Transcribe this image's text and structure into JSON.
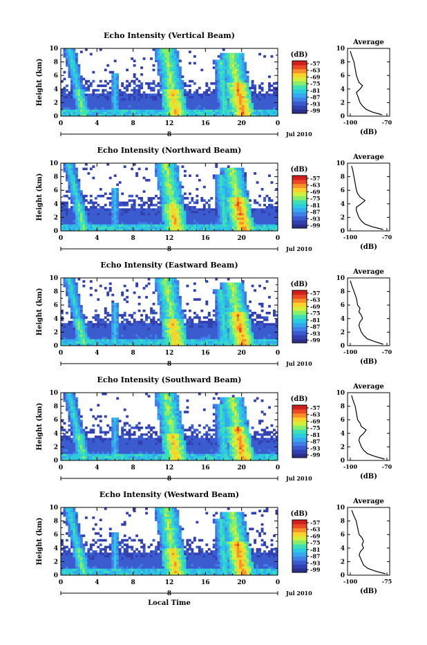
{
  "chart_data": [
    {
      "type": "heatmap",
      "title": "Echo Intensity (Vertical Beam)",
      "ylabel": "Height (km)",
      "x_ticks": [
        "0",
        "4",
        "8",
        "12",
        "16",
        "20",
        "0"
      ],
      "y_ticks": [
        "0",
        "2",
        "4",
        "6",
        "8",
        "10"
      ],
      "xlim": [
        0,
        24
      ],
      "ylim": [
        0,
        10
      ],
      "day_label": "8",
      "date_label": "Jul 2010",
      "colorbar": {
        "unit": "(dB)",
        "ticks": [
          "-57",
          "-63",
          "-69",
          "-75",
          "-81",
          "-87",
          "-93",
          "-99"
        ]
      },
      "profile": {
        "title": "Average",
        "xlabel": "(dB)",
        "x_ticks": [
          "-100",
          "-70"
        ],
        "xlim": [
          -100,
          -70
        ],
        "y_ticks": [
          "0",
          "2",
          "4",
          "6",
          "8",
          "10"
        ],
        "points": [
          [
            -74,
            0.2
          ],
          [
            -82,
            0.6
          ],
          [
            -87,
            1.0
          ],
          [
            -90,
            1.5
          ],
          [
            -92,
            2.0
          ],
          [
            -93,
            2.5
          ],
          [
            -94,
            3.0
          ],
          [
            -95,
            3.5
          ],
          [
            -92,
            4.0
          ],
          [
            -90,
            4.5
          ],
          [
            -93,
            5.0
          ],
          [
            -94,
            5.5
          ],
          [
            -95,
            6.0
          ],
          [
            -96,
            7.0
          ],
          [
            -97,
            8.0
          ],
          [
            -99,
            9.0
          ],
          [
            -100,
            9.6
          ]
        ]
      }
    },
    {
      "type": "heatmap",
      "title": "Echo Intensity (Northward Beam)",
      "ylabel": "Height (km)",
      "x_ticks": [
        "0",
        "4",
        "8",
        "12",
        "16",
        "20",
        "0"
      ],
      "y_ticks": [
        "0",
        "2",
        "4",
        "6",
        "8",
        "10"
      ],
      "xlim": [
        0,
        24
      ],
      "ylim": [
        0,
        10
      ],
      "day_label": "8",
      "date_label": "Jul 2010",
      "colorbar": {
        "unit": "(dB)",
        "ticks": [
          "-57",
          "-63",
          "-69",
          "-75",
          "-81",
          "-87",
          "-93",
          "-99"
        ]
      },
      "profile": {
        "title": "Average",
        "xlabel": "(dB)",
        "x_ticks": [
          "-100",
          "-70"
        ],
        "xlim": [
          -100,
          -70
        ],
        "y_ticks": [
          "0",
          "2",
          "4",
          "6",
          "8",
          "10"
        ],
        "points": [
          [
            -73,
            0.2
          ],
          [
            -82,
            0.6
          ],
          [
            -88,
            1.0
          ],
          [
            -91,
            1.5
          ],
          [
            -93,
            2.0
          ],
          [
            -94,
            2.5
          ],
          [
            -95,
            3.0
          ],
          [
            -95,
            3.5
          ],
          [
            -91,
            4.0
          ],
          [
            -88,
            4.5
          ],
          [
            -92,
            5.0
          ],
          [
            -94,
            5.5
          ],
          [
            -95,
            6.0
          ],
          [
            -96,
            7.0
          ],
          [
            -97,
            8.0
          ],
          [
            -98,
            9.0
          ],
          [
            -99,
            9.6
          ]
        ]
      }
    },
    {
      "type": "heatmap",
      "title": "Echo Intensity (Eastward Beam)",
      "ylabel": "Height (km)",
      "x_ticks": [
        "0",
        "4",
        "8",
        "12",
        "16",
        "20",
        "0"
      ],
      "y_ticks": [
        "0",
        "2",
        "4",
        "6",
        "8",
        "10"
      ],
      "xlim": [
        0,
        24
      ],
      "ylim": [
        0,
        10
      ],
      "day_label": "8",
      "date_label": "Jul 2010",
      "colorbar": {
        "unit": "(dB)",
        "ticks": [
          "-57",
          "-63",
          "-69",
          "-75",
          "-81",
          "-87",
          "-93",
          "-99"
        ]
      },
      "profile": {
        "title": "Average",
        "xlabel": "(dB)",
        "x_ticks": [
          "-100",
          "-70"
        ],
        "xlim": [
          -100,
          -70
        ],
        "y_ticks": [
          "0",
          "2",
          "4",
          "6",
          "8",
          "10"
        ],
        "points": [
          [
            -73,
            0.2
          ],
          [
            -80,
            0.6
          ],
          [
            -86,
            1.0
          ],
          [
            -89,
            1.5
          ],
          [
            -91,
            2.0
          ],
          [
            -92,
            2.5
          ],
          [
            -93,
            3.0
          ],
          [
            -92,
            3.5
          ],
          [
            -90,
            4.0
          ],
          [
            -91,
            4.5
          ],
          [
            -93,
            5.0
          ],
          [
            -92,
            5.5
          ],
          [
            -94,
            6.0
          ],
          [
            -95,
            7.0
          ],
          [
            -97,
            8.0
          ],
          [
            -99,
            9.0
          ],
          [
            -100,
            9.6
          ]
        ]
      }
    },
    {
      "type": "heatmap",
      "title": "Echo Intensity (Southward Beam)",
      "ylabel": "Height (km)",
      "x_ticks": [
        "0",
        "4",
        "8",
        "12",
        "16",
        "20",
        "0"
      ],
      "y_ticks": [
        "0",
        "2",
        "4",
        "6",
        "8",
        "10"
      ],
      "xlim": [
        0,
        24
      ],
      "ylim": [
        0,
        10
      ],
      "day_label": "8",
      "date_label": "Jul 2010",
      "colorbar": {
        "unit": "(dB)",
        "ticks": [
          "-57",
          "-63",
          "-69",
          "-75",
          "-81",
          "-87",
          "-93",
          "-99"
        ]
      },
      "profile": {
        "title": "Average",
        "xlabel": "(dB)",
        "x_ticks": [
          "-100",
          "-70"
        ],
        "xlim": [
          -100,
          -70
        ],
        "y_ticks": [
          "0",
          "2",
          "4",
          "6",
          "8",
          "10"
        ],
        "points": [
          [
            -72,
            0.2
          ],
          [
            -80,
            0.6
          ],
          [
            -86,
            1.0
          ],
          [
            -89,
            1.5
          ],
          [
            -91,
            2.0
          ],
          [
            -92,
            2.5
          ],
          [
            -93,
            3.0
          ],
          [
            -92,
            3.5
          ],
          [
            -89,
            4.0
          ],
          [
            -87,
            4.5
          ],
          [
            -91,
            5.0
          ],
          [
            -92,
            5.5
          ],
          [
            -94,
            6.0
          ],
          [
            -95,
            7.0
          ],
          [
            -96,
            8.0
          ],
          [
            -98,
            9.0
          ],
          [
            -99,
            9.6
          ]
        ]
      }
    },
    {
      "type": "heatmap",
      "title": "Echo Intensity (Westward Beam)",
      "ylabel": "Height (km)",
      "xlabel": "Local Time",
      "x_ticks": [
        "0",
        "4",
        "8",
        "12",
        "16",
        "20",
        "0"
      ],
      "y_ticks": [
        "0",
        "2",
        "4",
        "6",
        "8",
        "10"
      ],
      "xlim": [
        0,
        24
      ],
      "ylim": [
        0,
        10
      ],
      "day_label": "8",
      "date_label": "Jul 2010",
      "colorbar": {
        "unit": "(dB)",
        "ticks": [
          "-57",
          "-63",
          "-69",
          "-75",
          "-81",
          "-87",
          "-93",
          "-99"
        ]
      },
      "profile": {
        "title": "Average",
        "xlabel": "(dB)",
        "x_ticks": [
          "-100",
          "-75"
        ],
        "xlim": [
          -100,
          -75
        ],
        "y_ticks": [
          "0",
          "2",
          "4",
          "6",
          "8",
          "10"
        ],
        "points": [
          [
            -76,
            0.2
          ],
          [
            -83,
            0.6
          ],
          [
            -88,
            1.0
          ],
          [
            -91,
            1.5
          ],
          [
            -92,
            2.0
          ],
          [
            -93,
            2.5
          ],
          [
            -94,
            3.0
          ],
          [
            -93,
            3.5
          ],
          [
            -91,
            4.0
          ],
          [
            -92,
            4.5
          ],
          [
            -91,
            5.0
          ],
          [
            -92,
            5.5
          ],
          [
            -94,
            6.0
          ],
          [
            -95,
            7.0
          ],
          [
            -96,
            8.0
          ],
          [
            -98,
            9.0
          ],
          [
            -99,
            9.6
          ]
        ]
      }
    }
  ],
  "colorscale": [
    "#2b2f8c",
    "#3340b0",
    "#3a5ccf",
    "#3f80e6",
    "#35a8ef",
    "#2ccbe0",
    "#3fe0b4",
    "#86ee6c",
    "#d4ee3a",
    "#f9d22b",
    "#f8902a",
    "#ea4a24",
    "#cf1f1f"
  ]
}
